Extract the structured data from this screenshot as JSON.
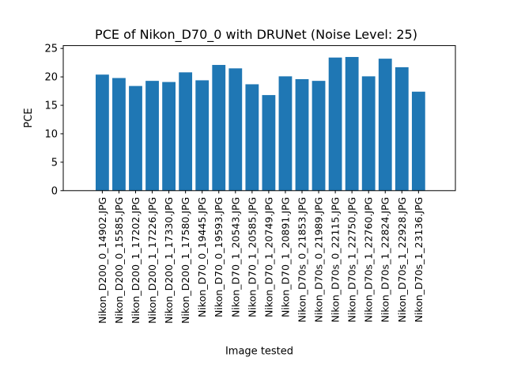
{
  "chart_data": {
    "type": "bar",
    "title": "PCE of Nikon_D70_0 with DRUNet (Noise Level: 25)",
    "xlabel": "Image tested",
    "ylabel": "PCE",
    "ylim": [
      0,
      25.5
    ],
    "yticks": [
      "0",
      "5",
      "10",
      "15",
      "20",
      "25"
    ],
    "grid": false,
    "bar_color": "#1f77b4",
    "categories": [
      "Nikon_D200_0_14902.JPG",
      "Nikon_D200_0_15585.JPG",
      "Nikon_D200_1_17202.JPG",
      "Nikon_D200_1_17226.JPG",
      "Nikon_D200_1_17330.JPG",
      "Nikon_D200_1_17580.JPG",
      "Nikon_D70_0_19445.JPG",
      "Nikon_D70_0_19593.JPG",
      "Nikon_D70_1_20543.JPG",
      "Nikon_D70_1_20585.JPG",
      "Nikon_D70_1_20749.JPG",
      "Nikon_D70_1_20891.JPG",
      "Nikon_D70s_0_21853.JPG",
      "Nikon_D70s_0_21989.JPG",
      "Nikon_D70s_0_22115.JPG",
      "Nikon_D70s_1_22750.JPG",
      "Nikon_D70s_1_22760.JPG",
      "Nikon_D70s_1_22824.JPG",
      "Nikon_D70s_1_22928.JPG",
      "Nikon_D70s_1_23136.JPG"
    ],
    "values": [
      20.4,
      19.8,
      18.4,
      19.3,
      19.1,
      20.8,
      19.4,
      22.1,
      21.5,
      18.7,
      16.8,
      20.1,
      19.6,
      19.3,
      23.4,
      23.5,
      20.1,
      23.2,
      21.7,
      17.4
    ]
  }
}
